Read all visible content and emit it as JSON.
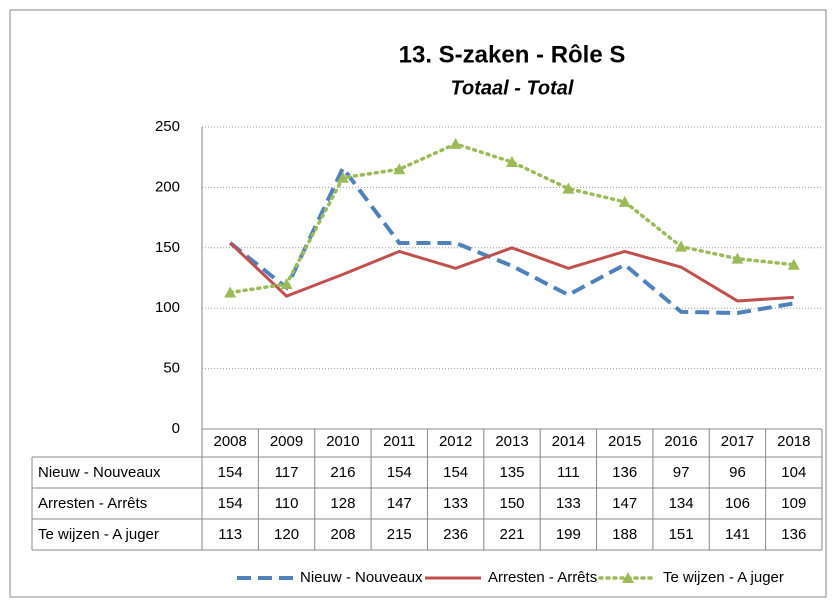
{
  "chart_data": {
    "type": "line",
    "title": "13. S-zaken - Rôle S",
    "subtitle": "Totaal - Total",
    "categories": [
      "2008",
      "2009",
      "2010",
      "2011",
      "2012",
      "2013",
      "2014",
      "2015",
      "2016",
      "2017",
      "2018"
    ],
    "series": [
      {
        "name": "Nieuw - Nouveaux",
        "color": "#4f81bd",
        "values": [
          154,
          117,
          216,
          154,
          154,
          135,
          111,
          136,
          97,
          96,
          104
        ]
      },
      {
        "name": "Arresten - Arrêts",
        "color": "#c0504d",
        "values": [
          154,
          110,
          128,
          147,
          133,
          150,
          133,
          147,
          134,
          106,
          109
        ]
      },
      {
        "name": "Te wijzen - A juger",
        "color": "#9bbb59",
        "values": [
          113,
          120,
          208,
          215,
          236,
          221,
          199,
          188,
          151,
          141,
          136
        ]
      }
    ],
    "ylim": [
      0,
      250
    ],
    "yticks": [
      0,
      50,
      100,
      150,
      200,
      250
    ],
    "grid": true,
    "legend": "bottom"
  }
}
